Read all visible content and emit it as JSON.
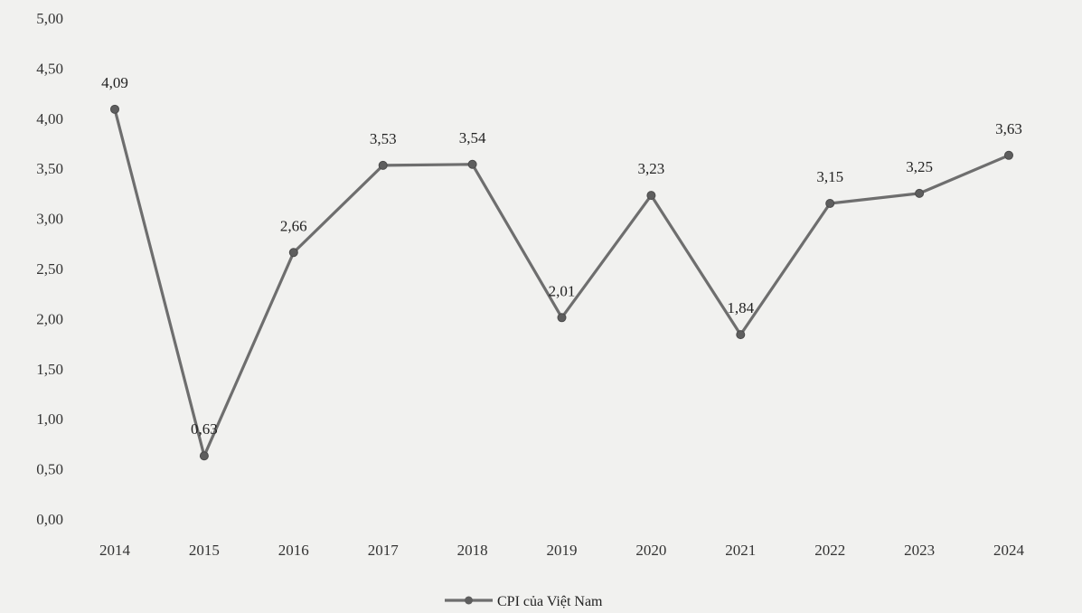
{
  "chart_data": {
    "type": "line",
    "title": "",
    "xlabel": "",
    "ylabel": "",
    "categories": [
      "2014",
      "2015",
      "2016",
      "2017",
      "2018",
      "2019",
      "2020",
      "2021",
      "2022",
      "2023",
      "2024"
    ],
    "series": [
      {
        "name": "CPI của Việt Nam",
        "values": [
          4.09,
          0.63,
          2.66,
          3.53,
          3.54,
          2.01,
          3.23,
          1.84,
          3.15,
          3.25,
          3.63
        ],
        "labels": [
          "4,09",
          "0,63",
          "2,66",
          "3,53",
          "3,54",
          "2,01",
          "3,23",
          "1,84",
          "3,15",
          "3,25",
          "3,63"
        ]
      }
    ],
    "ylim": [
      0,
      5
    ],
    "yticks": [
      "0,00",
      "0,50",
      "1,00",
      "1,50",
      "2,00",
      "2,50",
      "3,00",
      "3,50",
      "4,00",
      "4,50",
      "5,00"
    ],
    "ytick_values": [
      0,
      0.5,
      1,
      1.5,
      2,
      2.5,
      3,
      3.5,
      4,
      4.5,
      5
    ],
    "grid": false,
    "legend_position": "bottom-center",
    "colors": {
      "line": "#6e6e6e",
      "marker": "#5e5e5e",
      "text": "#222222"
    }
  }
}
